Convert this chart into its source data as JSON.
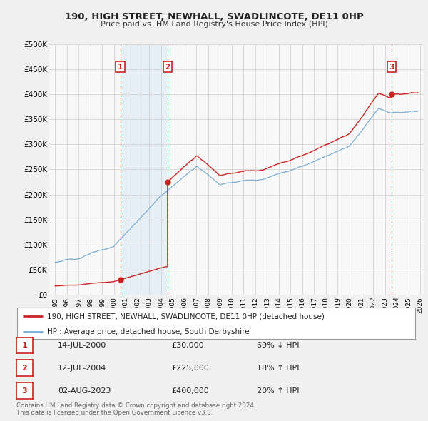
{
  "title": "190, HIGH STREET, NEWHALL, SWADLINCOTE, DE11 0HP",
  "subtitle": "Price paid vs. HM Land Registry's House Price Index (HPI)",
  "legend_line1": "190, HIGH STREET, NEWHALL, SWADLINCOTE, DE11 0HP (detached house)",
  "legend_line2": "HPI: Average price, detached house, South Derbyshire",
  "footer1": "Contains HM Land Registry data © Crown copyright and database right 2024.",
  "footer2": "This data is licensed under the Open Government Licence v3.0.",
  "transactions": [
    {
      "num": 1,
      "date": "14-JUL-2000",
      "price": 30000,
      "hpi_pct": "69% ↓ HPI",
      "year": 2000.54
    },
    {
      "num": 2,
      "date": "12-JUL-2004",
      "price": 225000,
      "hpi_pct": "18% ↑ HPI",
      "year": 2004.54
    },
    {
      "num": 3,
      "date": "02-AUG-2023",
      "price": 400000,
      "hpi_pct": "20% ↑ HPI",
      "year": 2023.59
    }
  ],
  "hpi_color": "#7aadd4",
  "price_color": "#cc2222",
  "marker_color": "#cc2222",
  "shade_color": "#d8e8f5",
  "vline_color": "#cc2222",
  "background_color": "#f0f0f0",
  "plot_bg": "#f8f8f8",
  "ylim": [
    0,
    500000
  ],
  "xlim_start": 1995,
  "xlim_end": 2026,
  "yticks": [
    0,
    50000,
    100000,
    150000,
    200000,
    250000,
    300000,
    350000,
    400000,
    450000,
    500000
  ],
  "ytick_labels": [
    "£0",
    "£50K",
    "£100K",
    "£150K",
    "£200K",
    "£250K",
    "£300K",
    "£350K",
    "£400K",
    "£450K",
    "£500K"
  ],
  "xticks": [
    1995,
    1996,
    1997,
    1998,
    1999,
    2000,
    2001,
    2002,
    2003,
    2004,
    2005,
    2006,
    2007,
    2008,
    2009,
    2010,
    2011,
    2012,
    2013,
    2014,
    2015,
    2016,
    2017,
    2018,
    2019,
    2020,
    2021,
    2022,
    2023,
    2024,
    2025,
    2026
  ]
}
